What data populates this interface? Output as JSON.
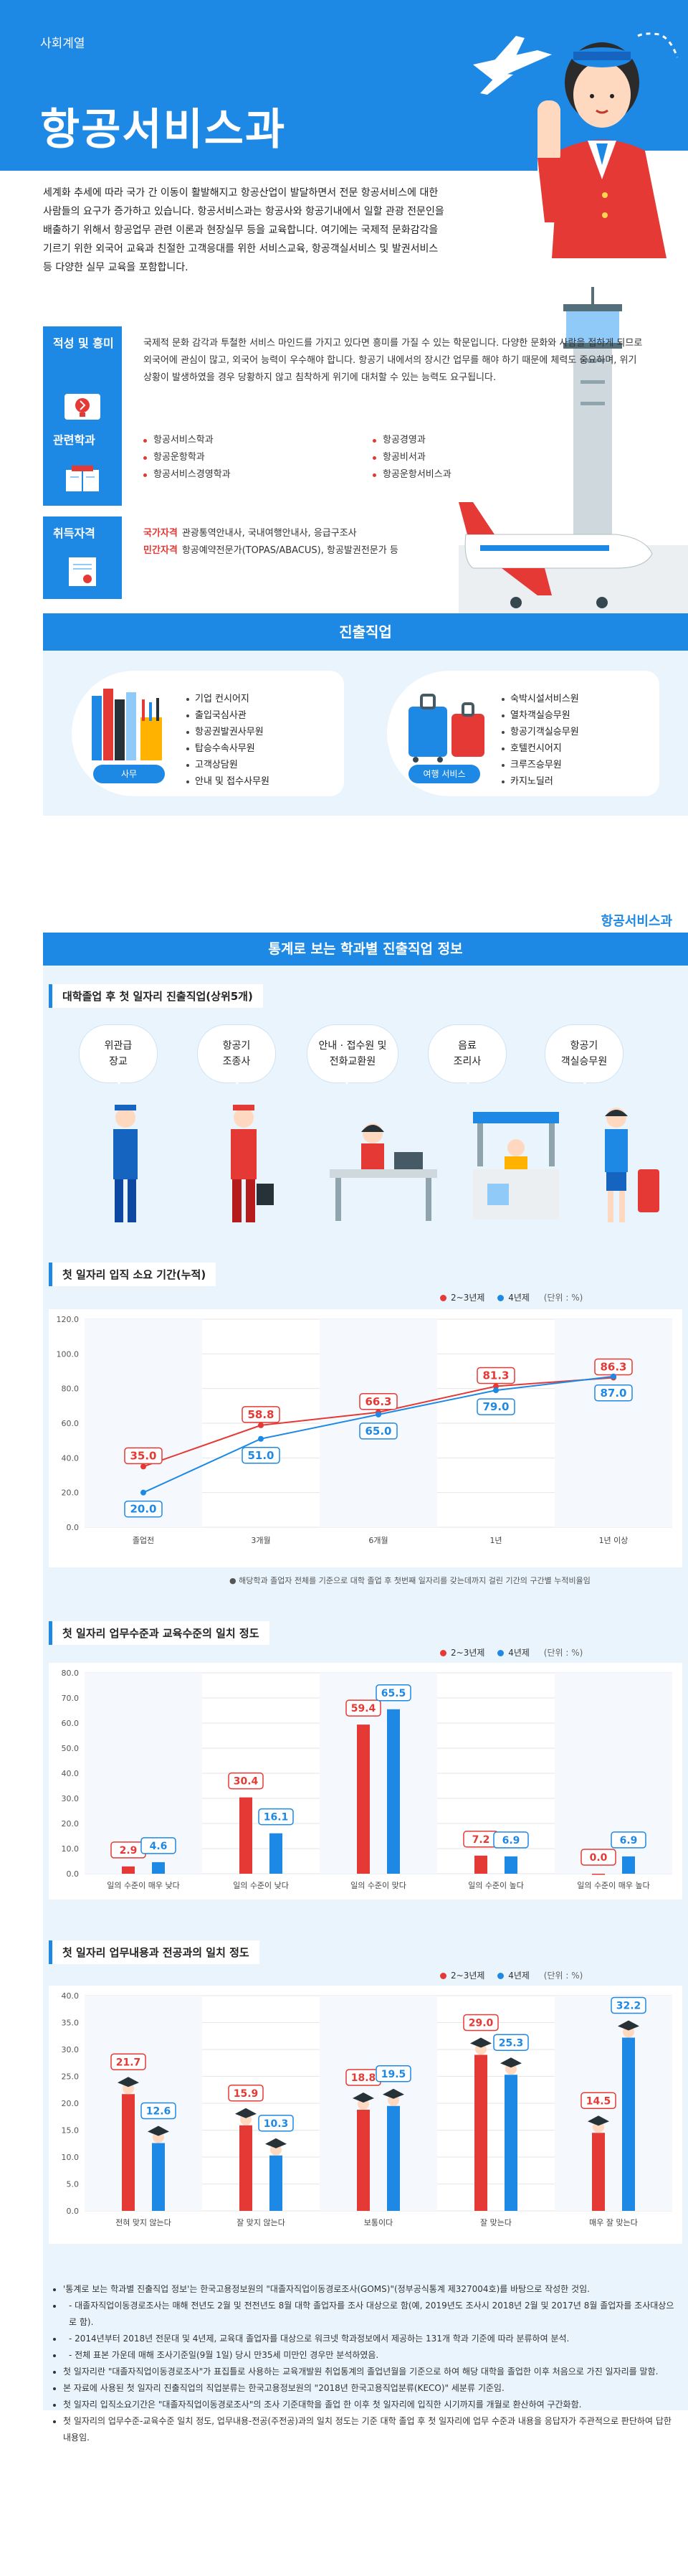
{
  "header": {
    "category": "사회계열",
    "title": "항공서비스과",
    "intro": "세계화 추세에 따라 국가 간 이동이 활발해지고 항공산업이 발달하면서 전문 항공서비스에 대한 사람들의 요구가 증가하고 있습니다. 항공서비스과는 항공사와 항공기내에서 일할 관광 전문인을 배출하기 위해서 항공업무 관련 이론과 현장실무 등을 교육합니다. 여기에는 국제적 문화감각을 기르기 위한 외국어 교육과 친절한 고객응대를 위한 서비스교육, 항공객실서비스 및 발권서비스 등 다양한 실무 교육을 포함합니다."
  },
  "aptitude": {
    "label": "적성 및 흥미",
    "icon": "lightbulb-icon",
    "text": "국제적 문화 감각과 투철한 서비스 마인드를 가지고 있다면 흥미를 가질 수 있는 학문입니다. 다양한 문화와 사람을 접하게 되므로 외국어에 관심이 많고, 외국어 능력이 우수해야 합니다. 항공기 내에서의 장시간 업무를 해야 하기 때문에 체력도 중요하며, 위기상황이 발생하였을 경우 당황하지 않고 침착하게 위기에 대처할 수 있는 능력도 요구됩니다."
  },
  "related": {
    "label": "관련학과",
    "icon": "book-icon",
    "col1": [
      "항공서비스학과",
      "항공운항학과",
      "항공서비스경영학과"
    ],
    "col2": [
      "항공경영과",
      "항공비서과",
      "항공운항서비스과"
    ]
  },
  "license": {
    "label": "취득자격",
    "icon": "certificate-icon",
    "national_label": "국가자격",
    "national_text": "관광통역안내사, 국내여행안내사, 응급구조사",
    "private_label": "민간자격",
    "private_text": "항공예약전문가(TOPAS/ABACUS), 항공발권전문가 등"
  },
  "career": {
    "title": "진출직업",
    "office": {
      "tag": "사무",
      "items": [
        "기업 컨시어지",
        "출입국심사관",
        "항공권발권사무원",
        "탑승수속사무원",
        "고객상담원",
        "안내 및 접수사무원"
      ]
    },
    "travel": {
      "tag": "여행 서비스",
      "items": [
        "숙박시설서비스원",
        "열차객실승무원",
        "항공기객실승무원",
        "호텔컨시어지",
        "크루즈승무원",
        "카지노딜러"
      ]
    }
  },
  "stats": {
    "page_subtitle": "항공서비스과",
    "heading": "통계로 보는 학과별 진출직업 정보",
    "top5_title": "대학졸업 후 첫 일자리 진출직업(상위5개)",
    "top5": [
      [
        "위관급",
        "장교"
      ],
      [
        "항공기",
        "조종사"
      ],
      [
        "안내 · 접수원 및",
        "전화교환원"
      ],
      [
        "음료",
        "조리사"
      ],
      [
        "항공기",
        "객실승무원"
      ]
    ],
    "legend_a": "2~3년제",
    "legend_b": "4년제",
    "unit": "(단위 : %)",
    "color_a": "#e53935",
    "color_b": "#1e88e5"
  },
  "chart_data": [
    {
      "type": "line",
      "title": "첫 일자리 입직 소요 기간(누적)",
      "categories": [
        "졸업전",
        "3개월",
        "6개월",
        "1년",
        "1년 이상"
      ],
      "ylim": [
        0,
        120
      ],
      "yticks": [
        "0.0",
        "20.0",
        "40.0",
        "60.0",
        "80.0",
        "100.0",
        "120.0"
      ],
      "series": [
        {
          "name": "2~3년제",
          "values": [
            35.0,
            58.8,
            66.3,
            81.3,
            86.3
          ]
        },
        {
          "name": "4년제",
          "values": [
            20.0,
            51.0,
            65.0,
            79.0,
            87.0
          ]
        }
      ],
      "labels_a": [
        "35.0",
        "58.8",
        "66.3",
        "81.3",
        "86.3"
      ],
      "labels_b": [
        "20.0",
        "51.0",
        "65.0",
        "79.0",
        "87.0"
      ],
      "note": "● 해당학과 졸업자 전체를 기준으로 대학 졸업 후 첫번째 일자리를 갖는데까지 걸린 기간의 구간별 누적비율임"
    },
    {
      "type": "bar",
      "title": "첫 일자리 업무수준과 교육수준의 일치 정도",
      "categories": [
        "일의 수준이 매우 낮다",
        "일의 수준이 낮다",
        "일의 수준이 맞다",
        "일의 수준이 높다",
        "일의 수준이 매우 높다"
      ],
      "ylim": [
        0,
        80
      ],
      "yticks": [
        "0.0",
        "10.0",
        "20.0",
        "30.0",
        "40.0",
        "50.0",
        "60.0",
        "70.0",
        "80.0"
      ],
      "series": [
        {
          "name": "2~3년제",
          "values": [
            2.9,
            30.4,
            59.4,
            7.2,
            0.0
          ]
        },
        {
          "name": "4년제",
          "values": [
            4.6,
            16.1,
            65.5,
            6.9,
            6.9
          ]
        }
      ],
      "labels_a": [
        "2.9",
        "30.4",
        "59.4",
        "7.2",
        "0.0"
      ],
      "labels_b": [
        "4.6",
        "16.1",
        "65.5",
        "6.9",
        "6.9"
      ]
    },
    {
      "type": "bar",
      "title": "첫 일자리 업무내용과 전공과의 일치 정도",
      "categories": [
        "전혀 맞지 않는다",
        "잘 맞지 않는다",
        "보통이다",
        "잘 맞는다",
        "매우 잘 맞는다"
      ],
      "ylim": [
        0,
        40
      ],
      "yticks": [
        "0.0",
        "5.0",
        "10.0",
        "15.0",
        "20.0",
        "25.0",
        "30.0",
        "35.0",
        "40.0"
      ],
      "series": [
        {
          "name": "2~3년제",
          "values": [
            21.7,
            15.9,
            18.8,
            29.0,
            14.5
          ]
        },
        {
          "name": "4년제",
          "values": [
            12.6,
            10.3,
            19.5,
            25.3,
            32.2
          ]
        }
      ],
      "labels_a": [
        "21.7",
        "15.9",
        "18.8",
        "29.0",
        "14.5"
      ],
      "labels_b": [
        "12.6",
        "10.3",
        "19.5",
        "25.3",
        "32.2"
      ]
    }
  ],
  "notes": [
    "'통계로 보는 학과별 진출직업 정보'는 한국고용정보원의 \"대졸자직업이동경로조사(GOMS)\"(정부공식통계 제327004호)를 바탕으로 작성한 것임.",
    "- 대졸자직업이동경로조사는 매해 전년도 2월 및 전전년도 8월 대학 졸업자를 조사 대상으로 함(예, 2019년도 조사시 2018년 2월 및 2017년 8월 졸업자를 조사대상으로 함).",
    "- 2014년부터 2018년 전문대 및 4년제, 교육대 졸업자를 대상으로 워크넷 학과정보에서 제공하는 131개 학과 기준에 따라 분류하여 분석.",
    "- 전체 표본 가운데 매해 조사기준일(9월 1일) 당시 만35세 미만인 경우만 분석하였음.",
    "첫 일자리란 \"대졸자직업이동경로조사\"가 표집틀로 사용하는 교육개발원 취업통계의 졸업년월을 기준으로 하여 해당 대학을 졸업한 이후 처음으로 가진 일자리를 말함.",
    "본 자료에 사용된 첫 일자리 진출직업의 직업분류는 한국고용정보원의 \"2018년 한국고용직업분류(KECO)\" 세분류 기준임.",
    "첫 일자리 입직소요기간은 \"대졸자직업이동경로조사\"의 조사 기준대학을 졸업 한 이후 첫 일자리에 입직한 시기까지를 개월로 환산하여 구간화함.",
    "첫 일자리의 업무수준-교육수준 일치 정도, 업무내용-전공(주전공)과의 일치 정도는 기준 대학 졸업 후 첫 일자리에 업무 수준과 내용을 응답자가 주관적으로 판단하여 답한 내용임."
  ]
}
